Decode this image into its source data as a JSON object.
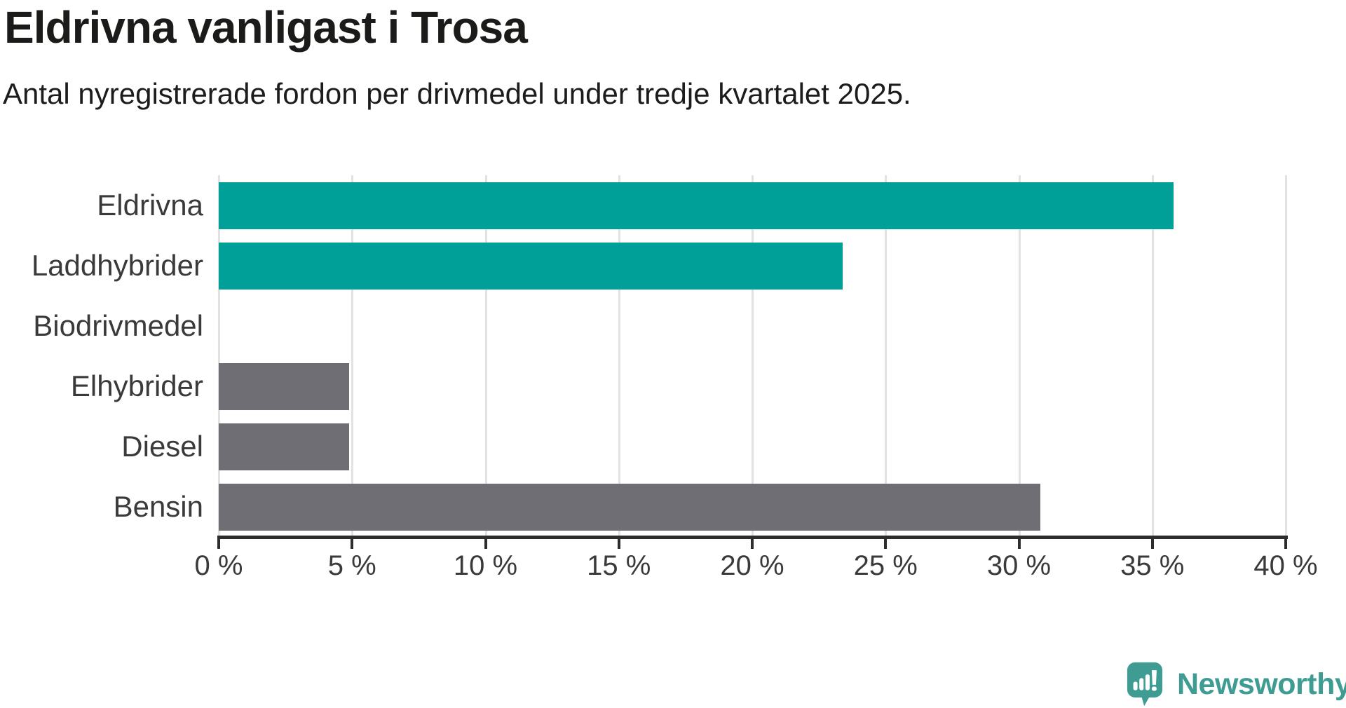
{
  "header": {
    "title": "Eldrivna vanligast i Trosa",
    "subtitle": "Antal nyregistrerade fordon per drivmedel under tredje kvartalet 2025."
  },
  "chart_data": {
    "type": "bar",
    "orientation": "horizontal",
    "title": "Eldrivna vanligast i Trosa",
    "subtitle": "Antal nyregistrerade fordon per drivmedel under tredje kvartalet 2025.",
    "categories": [
      "Eldrivna",
      "Laddhybrider",
      "Biodrivmedel",
      "Elhybrider",
      "Diesel",
      "Bensin"
    ],
    "values": [
      35.8,
      23.4,
      0,
      4.9,
      4.9,
      30.8
    ],
    "unit": "%",
    "bar_colors": [
      "#00a099",
      "#00a099",
      "#6e6e74",
      "#6e6e74",
      "#6e6e74",
      "#6e6e74"
    ],
    "xlim": [
      0,
      40
    ],
    "x_tick_values": [
      0,
      5,
      10,
      15,
      20,
      25,
      30,
      35,
      40
    ],
    "x_tick_labels": [
      "0 %",
      "5 %",
      "10 %",
      "15 %",
      "20 %",
      "25 %",
      "30 %",
      "35 %",
      "40 %"
    ],
    "grid": "vertical-light-gray",
    "legend": "none"
  },
  "branding": {
    "logo_text": "Newsworthy",
    "logo_icon": "newsworthy-speech-bubble-barchart-icon"
  },
  "colors": {
    "accent_teal": "#00a099",
    "neutral_gray": "#6e6e74",
    "gridline": "#e2e2e2",
    "axis": "#2d2d2d",
    "text_dark": "#1b1b19",
    "label_gray": "#3a3a3a",
    "logo_teal": "#3f9c93"
  }
}
